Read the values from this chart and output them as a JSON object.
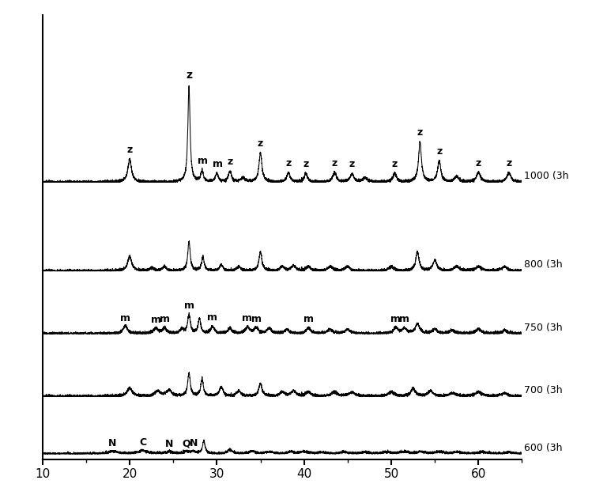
{
  "xlim": [
    10,
    65
  ],
  "xticks": [
    10,
    20,
    30,
    40,
    50,
    60
  ],
  "temperatures": [
    "600 (3h",
    "700 (3h",
    "750 (3h",
    "800 (3h",
    "1000 (3h"
  ],
  "offsets": [
    0.0,
    0.55,
    1.15,
    1.75,
    2.6
  ],
  "background_color": "#ffffff",
  "line_color": "#000000",
  "font_size_ticks": 11,
  "figsize": [
    7.68,
    6.31
  ],
  "dpi": 100
}
